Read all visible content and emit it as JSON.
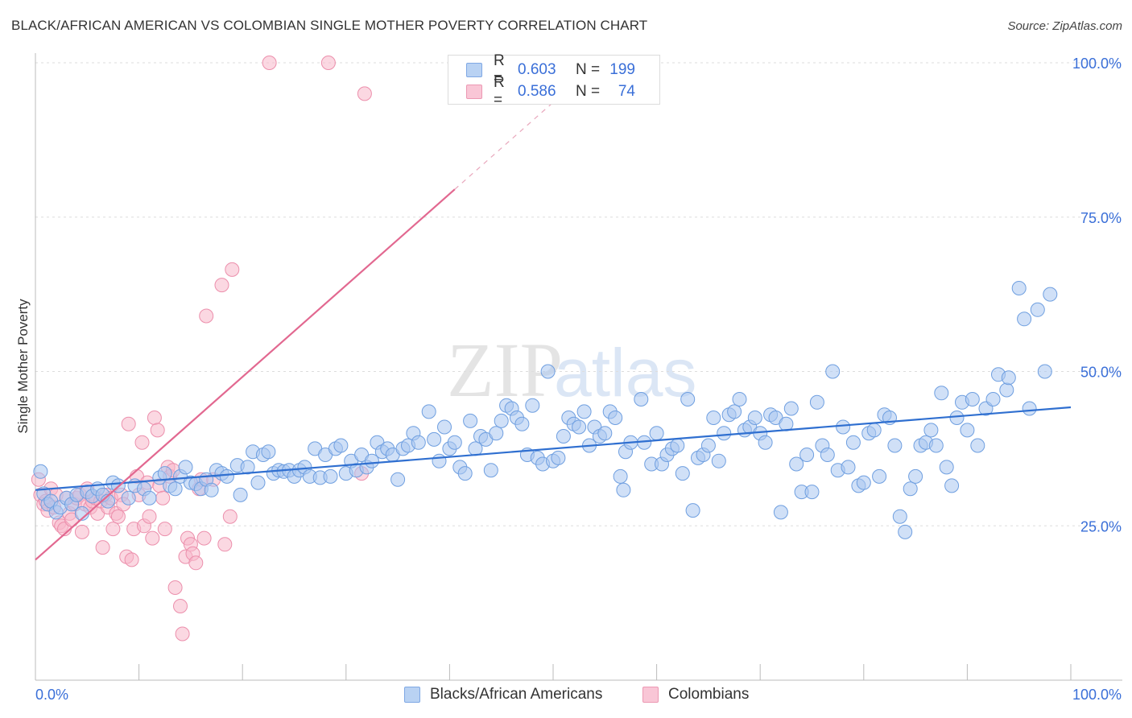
{
  "title": "BLACK/AFRICAN AMERICAN VS COLOMBIAN SINGLE MOTHER POVERTY CORRELATION CHART",
  "source": "Source: ZipAtlas.com",
  "watermark": {
    "zip": "ZIP",
    "atlas": "atlas"
  },
  "colors": {
    "blue_fill": "#a9c6f0",
    "blue_stroke": "#6f9fe0",
    "blue_line": "#2f6fd0",
    "pink_fill": "#f7b8cb",
    "pink_stroke": "#ec8fac",
    "pink_line": "#e26890",
    "axis_label": "#3a6fd8",
    "grid": "#dddddd"
  },
  "legend": {
    "rows": [
      {
        "r_label": "R =",
        "r_value": "0.603",
        "n_label": "N =",
        "n_value": "199",
        "series": "blue"
      },
      {
        "r_label": "R =",
        "r_value": "0.586",
        "n_label": "N =",
        "n_value": "74",
        "series": "pink"
      }
    ]
  },
  "bottom_legend": [
    {
      "label": "Blacks/African Americans",
      "series": "blue"
    },
    {
      "label": "Colombians",
      "series": "pink"
    }
  ],
  "chart_data": {
    "type": "scatter",
    "title": "BLACK/AFRICAN AMERICAN VS COLOMBIAN SINGLE MOTHER POVERTY CORRELATION CHART",
    "xlabel": "",
    "ylabel": "Single Mother Poverty",
    "xlim": [
      0,
      100
    ],
    "ylim": [
      0,
      100
    ],
    "x_tick_labels": [
      {
        "value": 0,
        "label": "0.0%"
      },
      {
        "value": 100,
        "label": "100.0%"
      }
    ],
    "y_tick_labels": [
      {
        "value": 25,
        "label": "25.0%"
      },
      {
        "value": 50,
        "label": "50.0%"
      },
      {
        "value": 75,
        "label": "75.0%"
      },
      {
        "value": 100,
        "label": "100.0%"
      }
    ],
    "grid": true,
    "series": [
      {
        "name": "Blacks/African Americans",
        "color": "blue",
        "trend": {
          "x0": 0,
          "y0": 30.8,
          "x1": 100,
          "y1": 44.2
        },
        "points": [
          [
            0.5,
            33.8
          ],
          [
            0.8,
            30.2
          ],
          [
            1.2,
            28.5
          ],
          [
            1.5,
            29.0
          ],
          [
            2.0,
            27.2
          ],
          [
            2.4,
            28.0
          ],
          [
            3.0,
            29.5
          ],
          [
            3.5,
            28.5
          ],
          [
            4.0,
            30.0
          ],
          [
            4.5,
            27.0
          ],
          [
            5.0,
            30.5
          ],
          [
            5.5,
            29.8
          ],
          [
            6.0,
            31.0
          ],
          [
            6.5,
            30.0
          ],
          [
            7.0,
            29.0
          ],
          [
            7.5,
            32.0
          ],
          [
            8.0,
            31.5
          ],
          [
            9.0,
            29.5
          ],
          [
            9.6,
            31.5
          ],
          [
            10.5,
            31.0
          ],
          [
            11.0,
            29.5
          ],
          [
            12.0,
            32.8
          ],
          [
            12.5,
            33.5
          ],
          [
            13.0,
            31.5
          ],
          [
            13.5,
            31.0
          ],
          [
            14.0,
            33.0
          ],
          [
            14.5,
            34.5
          ],
          [
            15.0,
            32.0
          ],
          [
            15.5,
            31.8
          ],
          [
            16.0,
            31.0
          ],
          [
            16.5,
            32.5
          ],
          [
            17.0,
            30.8
          ],
          [
            17.5,
            34.0
          ],
          [
            18.0,
            33.5
          ],
          [
            18.5,
            33.0
          ],
          [
            19.5,
            34.8
          ],
          [
            19.8,
            30.0
          ],
          [
            20.5,
            34.5
          ],
          [
            21.0,
            37.0
          ],
          [
            21.5,
            32.0
          ],
          [
            22.0,
            36.5
          ],
          [
            22.5,
            37.0
          ],
          [
            23.0,
            33.5
          ],
          [
            23.5,
            34.0
          ],
          [
            24.0,
            33.8
          ],
          [
            24.5,
            34.0
          ],
          [
            25.0,
            33.0
          ],
          [
            25.5,
            34.0
          ],
          [
            26.0,
            34.5
          ],
          [
            26.5,
            33.0
          ],
          [
            27.0,
            37.5
          ],
          [
            27.5,
            32.8
          ],
          [
            28.0,
            36.5
          ],
          [
            28.5,
            33.0
          ],
          [
            29.0,
            37.5
          ],
          [
            29.5,
            38.0
          ],
          [
            30.0,
            33.5
          ],
          [
            30.5,
            35.5
          ],
          [
            31.0,
            34.0
          ],
          [
            31.5,
            36.5
          ],
          [
            32.0,
            34.5
          ],
          [
            32.5,
            35.5
          ],
          [
            33.0,
            38.5
          ],
          [
            33.5,
            37.0
          ],
          [
            34.0,
            37.5
          ],
          [
            34.5,
            36.5
          ],
          [
            35.0,
            32.5
          ],
          [
            35.5,
            37.5
          ],
          [
            36.0,
            38.0
          ],
          [
            36.5,
            40.0
          ],
          [
            37.0,
            38.5
          ],
          [
            38.0,
            43.5
          ],
          [
            38.5,
            39.0
          ],
          [
            39.0,
            35.5
          ],
          [
            39.5,
            41.0
          ],
          [
            40.0,
            37.5
          ],
          [
            40.5,
            38.5
          ],
          [
            41.0,
            34.5
          ],
          [
            41.5,
            33.5
          ],
          [
            42.0,
            42.0
          ],
          [
            42.5,
            37.5
          ],
          [
            43.0,
            39.5
          ],
          [
            43.5,
            39.0
          ],
          [
            44.0,
            34.0
          ],
          [
            44.5,
            40.0
          ],
          [
            45.0,
            42.0
          ],
          [
            45.5,
            44.5
          ],
          [
            46.0,
            44.0
          ],
          [
            46.5,
            42.5
          ],
          [
            47.0,
            41.5
          ],
          [
            47.5,
            36.5
          ],
          [
            48.0,
            44.5
          ],
          [
            48.5,
            36.0
          ],
          [
            49.0,
            35.0
          ],
          [
            49.5,
            50.0
          ],
          [
            50.0,
            35.5
          ],
          [
            50.5,
            36.0
          ],
          [
            51.0,
            39.5
          ],
          [
            51.5,
            42.5
          ],
          [
            52.0,
            41.5
          ],
          [
            52.5,
            41.0
          ],
          [
            53.0,
            43.5
          ],
          [
            53.5,
            38.0
          ],
          [
            54.0,
            41.0
          ],
          [
            54.5,
            39.5
          ],
          [
            55.0,
            40.0
          ],
          [
            55.5,
            43.5
          ],
          [
            56.0,
            42.5
          ],
          [
            56.5,
            33.0
          ],
          [
            56.8,
            30.8
          ],
          [
            57.0,
            37.0
          ],
          [
            57.5,
            38.5
          ],
          [
            58.5,
            45.5
          ],
          [
            58.8,
            38.5
          ],
          [
            59.5,
            35.0
          ],
          [
            60.0,
            40.0
          ],
          [
            60.5,
            35.0
          ],
          [
            61.0,
            36.5
          ],
          [
            61.5,
            37.5
          ],
          [
            62.0,
            38.0
          ],
          [
            62.5,
            33.5
          ],
          [
            63.0,
            45.5
          ],
          [
            63.5,
            27.5
          ],
          [
            64.0,
            36.0
          ],
          [
            64.5,
            36.5
          ],
          [
            65.0,
            38.0
          ],
          [
            65.5,
            42.5
          ],
          [
            66.0,
            35.5
          ],
          [
            66.5,
            40.0
          ],
          [
            67.0,
            43.0
          ],
          [
            67.5,
            43.5
          ],
          [
            68.0,
            45.5
          ],
          [
            68.5,
            40.5
          ],
          [
            69.0,
            41.0
          ],
          [
            69.5,
            42.5
          ],
          [
            70.0,
            40.0
          ],
          [
            70.5,
            38.5
          ],
          [
            71.0,
            43.0
          ],
          [
            71.5,
            42.5
          ],
          [
            72.0,
            27.2
          ],
          [
            72.5,
            41.5
          ],
          [
            73.0,
            44.0
          ],
          [
            73.5,
            35.0
          ],
          [
            74.0,
            30.5
          ],
          [
            74.5,
            36.5
          ],
          [
            75.0,
            30.5
          ],
          [
            75.5,
            45.0
          ],
          [
            76.0,
            38.0
          ],
          [
            76.5,
            36.5
          ],
          [
            77.0,
            50.0
          ],
          [
            77.5,
            34.0
          ],
          [
            78.0,
            41.0
          ],
          [
            78.5,
            34.5
          ],
          [
            79.0,
            38.5
          ],
          [
            79.5,
            31.5
          ],
          [
            80.0,
            32.0
          ],
          [
            80.5,
            40.0
          ],
          [
            81.0,
            40.5
          ],
          [
            81.5,
            33.0
          ],
          [
            82.0,
            43.0
          ],
          [
            82.5,
            42.5
          ],
          [
            83.0,
            38.0
          ],
          [
            83.5,
            26.5
          ],
          [
            84.0,
            24.0
          ],
          [
            84.5,
            31.0
          ],
          [
            85.0,
            33.0
          ],
          [
            85.5,
            38.0
          ],
          [
            86.0,
            38.5
          ],
          [
            86.5,
            40.5
          ],
          [
            87.0,
            38.0
          ],
          [
            87.5,
            46.5
          ],
          [
            88.0,
            34.5
          ],
          [
            88.5,
            31.5
          ],
          [
            89.0,
            42.5
          ],
          [
            89.5,
            45.0
          ],
          [
            90.0,
            40.5
          ],
          [
            90.5,
            45.5
          ],
          [
            91.0,
            38.0
          ],
          [
            91.8,
            44.0
          ],
          [
            92.5,
            45.5
          ],
          [
            93.0,
            49.5
          ],
          [
            93.8,
            47.0
          ],
          [
            94.0,
            49.0
          ],
          [
            95.0,
            63.5
          ],
          [
            95.5,
            58.5
          ],
          [
            96.8,
            60.0
          ],
          [
            97.5,
            50.0
          ],
          [
            98.0,
            62.5
          ],
          [
            96.0,
            44.0
          ]
        ]
      },
      {
        "name": "Colombians",
        "color": "pink",
        "trend": {
          "x0": 0,
          "y0": 19.5,
          "x1": 40.5,
          "y1": 79.5,
          "dashed_to": {
            "x": 55,
            "y": 101
          }
        },
        "points": [
          [
            0.3,
            32.5
          ],
          [
            0.5,
            30.0
          ],
          [
            0.8,
            28.5
          ],
          [
            1.0,
            29.0
          ],
          [
            1.2,
            27.5
          ],
          [
            1.5,
            31.0
          ],
          [
            1.8,
            28.0
          ],
          [
            2.0,
            30.0
          ],
          [
            2.3,
            25.5
          ],
          [
            2.5,
            25.0
          ],
          [
            2.8,
            24.5
          ],
          [
            3.0,
            29.5
          ],
          [
            3.3,
            27.0
          ],
          [
            3.5,
            26.0
          ],
          [
            3.8,
            28.5
          ],
          [
            4.0,
            29.5
          ],
          [
            4.3,
            30.0
          ],
          [
            4.5,
            24.0
          ],
          [
            4.8,
            28.5
          ],
          [
            5.0,
            31.0
          ],
          [
            5.3,
            28.0
          ],
          [
            5.5,
            29.0
          ],
          [
            5.8,
            29.5
          ],
          [
            6.0,
            27.0
          ],
          [
            6.3,
            29.0
          ],
          [
            6.5,
            21.5
          ],
          [
            6.8,
            30.0
          ],
          [
            7.0,
            28.0
          ],
          [
            7.3,
            29.5
          ],
          [
            7.5,
            24.5
          ],
          [
            7.8,
            27.0
          ],
          [
            8.0,
            26.5
          ],
          [
            8.3,
            30.0
          ],
          [
            8.5,
            28.5
          ],
          [
            8.8,
            20.0
          ],
          [
            9.0,
            41.5
          ],
          [
            9.3,
            19.5
          ],
          [
            9.5,
            24.5
          ],
          [
            9.8,
            33.0
          ],
          [
            10.0,
            30.0
          ],
          [
            10.3,
            38.5
          ],
          [
            10.5,
            25.0
          ],
          [
            10.8,
            32.0
          ],
          [
            11.0,
            26.5
          ],
          [
            11.3,
            23.0
          ],
          [
            11.5,
            42.5
          ],
          [
            11.8,
            40.5
          ],
          [
            12.0,
            31.5
          ],
          [
            12.3,
            29.5
          ],
          [
            12.5,
            24.5
          ],
          [
            12.8,
            34.5
          ],
          [
            13.0,
            33.0
          ],
          [
            13.3,
            34.0
          ],
          [
            13.5,
            15.0
          ],
          [
            14.0,
            12.0
          ],
          [
            14.2,
            7.5
          ],
          [
            14.5,
            20.0
          ],
          [
            14.7,
            23.0
          ],
          [
            15.0,
            22.0
          ],
          [
            15.2,
            20.5
          ],
          [
            15.5,
            19.0
          ],
          [
            15.8,
            31.0
          ],
          [
            16.0,
            32.5
          ],
          [
            16.3,
            23.0
          ],
          [
            16.5,
            59.0
          ],
          [
            17.2,
            32.5
          ],
          [
            18.0,
            64.0
          ],
          [
            18.3,
            22.0
          ],
          [
            18.8,
            26.5
          ],
          [
            19.0,
            66.5
          ],
          [
            22.6,
            100.0
          ],
          [
            28.3,
            100.0
          ],
          [
            31.5,
            33.5
          ],
          [
            31.8,
            95.0
          ]
        ]
      }
    ]
  }
}
